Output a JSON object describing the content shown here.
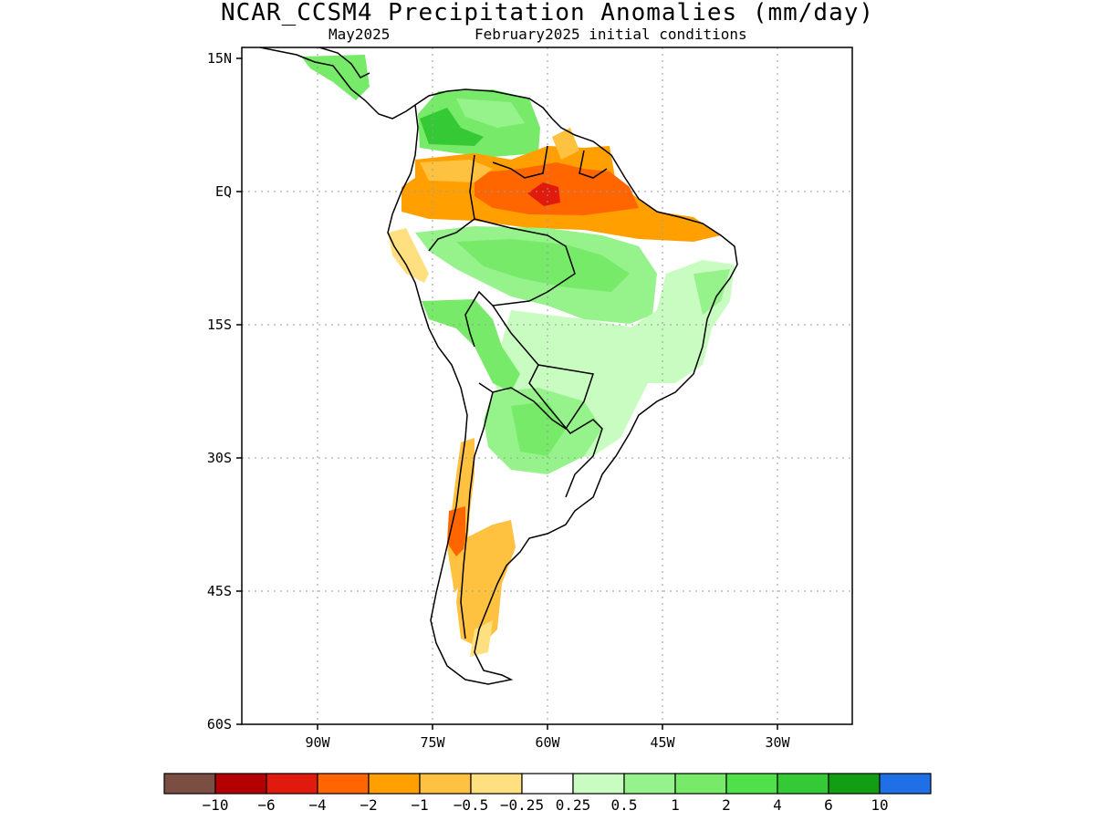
{
  "header": {
    "title": "NCAR_CCSM4 Precipitation Anomalies (mm/day)",
    "valid_month": "May2025",
    "init_conditions": "February2025 initial conditions"
  },
  "map": {
    "region": "South America",
    "lat_labels": [
      "15N",
      "EQ",
      "15S",
      "30S",
      "45S",
      "60S"
    ],
    "lon_labels": [
      "90W",
      "75W",
      "60W",
      "45W",
      "30W"
    ]
  },
  "colorbar": {
    "labels": [
      "-10",
      "-6",
      "-4",
      "-2",
      "-1",
      "-0.5",
      "-0.25",
      "0.25",
      "0.5",
      "1",
      "2",
      "4",
      "6",
      "10"
    ],
    "colors": [
      "#7a4e42",
      "#b30000",
      "#e01b0e",
      "#ff6600",
      "#ffa000",
      "#ffc140",
      "#ffe080",
      "#ffffff",
      "#c8fcc0",
      "#96f28a",
      "#78ea6a",
      "#4fe04a",
      "#35c935",
      "#129e12",
      "#1f6fe6"
    ]
  },
  "chart_data": {
    "type": "heatmap",
    "title": "NCAR_CCSM4 Precipitation Anomalies (mm/day)",
    "subtitle": [
      "May2025",
      "February2025 initial conditions"
    ],
    "units": "mm/day",
    "extent": {
      "lon": [
        -100,
        -20
      ],
      "lat": [
        -60,
        15
      ]
    },
    "levels": [
      -10,
      -6,
      -4,
      -2,
      -1,
      -0.5,
      -0.25,
      0.25,
      0.5,
      1,
      2,
      4,
      6,
      10
    ],
    "regions": [
      {
        "area": "Northern Venezuela / Colombia",
        "anomaly_range": [
          1,
          4
        ]
      },
      {
        "area": "Guiana Shield / Northern Amazon",
        "anomaly_range": [
          -4,
          -2
        ]
      },
      {
        "area": "Northern Brazil core (~59W, 1N)",
        "anomaly_range": [
          -6,
          -4
        ]
      },
      {
        "area": "Central Amazon / Western Brazil",
        "anomaly_range": [
          0.5,
          2
        ]
      },
      {
        "area": "Eastern Brazil",
        "anomaly_range": [
          0.25,
          1
        ]
      },
      {
        "area": "Paraguay / Northern Argentina",
        "anomaly_range": [
          0.5,
          2
        ]
      },
      {
        "area": "Central Chile / Andes 30S-40S",
        "anomaly_range": [
          -2,
          -1
        ]
      },
      {
        "area": "Patagonia",
        "anomaly_range": [
          -1,
          -0.25
        ]
      }
    ]
  }
}
